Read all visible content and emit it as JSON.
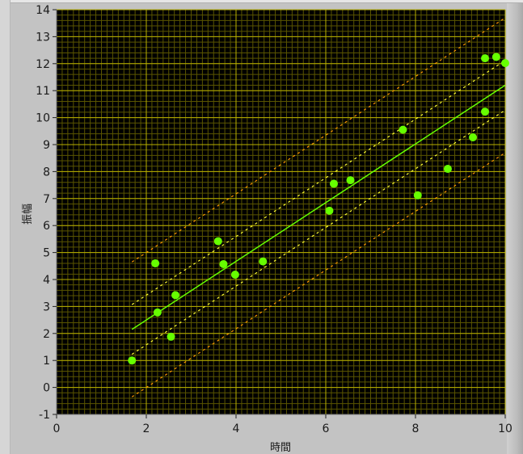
{
  "chart_data": {
    "type": "scatter",
    "xlabel": "時間",
    "ylabel": "振幅",
    "xlim": [
      0,
      10
    ],
    "ylim": [
      -1,
      14
    ],
    "x_ticks": [
      "0",
      "2",
      "4",
      "6",
      "8",
      "10"
    ],
    "y_ticks": [
      "-1",
      "0",
      "1",
      "2",
      "3",
      "4",
      "5",
      "6",
      "7",
      "8",
      "9",
      "10",
      "11",
      "12",
      "13",
      "14"
    ],
    "grid": true,
    "points": [
      {
        "x": 1.68,
        "y": 1.0
      },
      {
        "x": 2.2,
        "y": 4.6
      },
      {
        "x": 2.25,
        "y": 2.78
      },
      {
        "x": 2.55,
        "y": 1.88
      },
      {
        "x": 2.65,
        "y": 3.42
      },
      {
        "x": 3.6,
        "y": 5.42
      },
      {
        "x": 3.72,
        "y": 4.57
      },
      {
        "x": 3.98,
        "y": 4.18
      },
      {
        "x": 4.6,
        "y": 4.67
      },
      {
        "x": 6.08,
        "y": 6.55
      },
      {
        "x": 6.18,
        "y": 7.55
      },
      {
        "x": 6.55,
        "y": 7.68
      },
      {
        "x": 7.72,
        "y": 9.55
      },
      {
        "x": 8.05,
        "y": 7.12
      },
      {
        "x": 8.72,
        "y": 8.1
      },
      {
        "x": 9.28,
        "y": 9.27
      },
      {
        "x": 9.55,
        "y": 10.22
      },
      {
        "x": 9.55,
        "y": 12.2
      },
      {
        "x": 9.8,
        "y": 12.25
      },
      {
        "x": 10.0,
        "y": 12.02
      }
    ],
    "fit_line": {
      "x": [
        1.68,
        10
      ],
      "y": [
        2.15,
        11.2
      ]
    },
    "inner_bounds_offset": 0.92,
    "outer_bounds_offset": 2.5,
    "colors": {
      "background": "#000000",
      "grid_major": "#b8b000",
      "grid_minor": "#5a5500",
      "points": "#66ff00",
      "fit": "#66ff00",
      "inner_bounds": "#ffff33",
      "outer_bounds": "#ff9900"
    }
  }
}
